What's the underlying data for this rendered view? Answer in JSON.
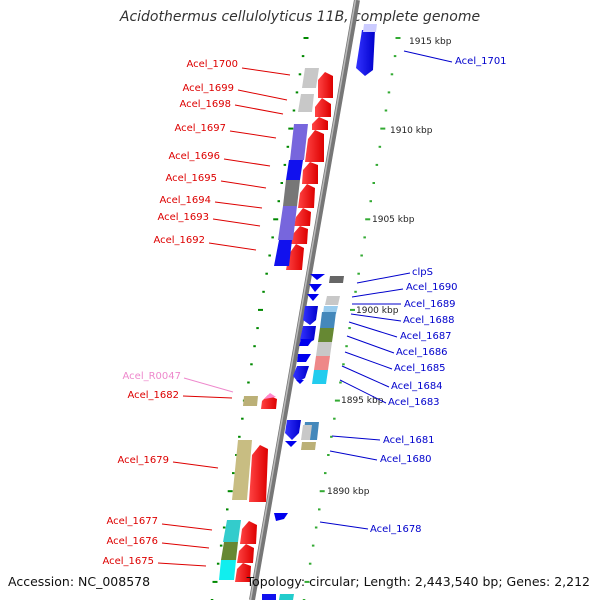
{
  "map": {
    "title": "Acidothermus cellulolyticus 11B, complete genome",
    "accession": "Accession: NC_008578",
    "summary": "Topology: circular; Length: 2,443,540 bp; Genes: 2,212",
    "colors": {
      "backbone": "#888888",
      "forward_label": "#dd0000",
      "reverse_label": "#0000cc",
      "rna_label": "#ee88cc",
      "tick_inner": "#008800",
      "tick_outer": "#33aa33",
      "ruler_text": "#222222"
    },
    "ruler": [
      {
        "label": "1915 kbp"
      },
      {
        "label": "1910 kbp"
      },
      {
        "label": "1905 kbp"
      },
      {
        "label": "1900 kbp"
      },
      {
        "label": "1895 kbp"
      },
      {
        "label": "1890 kbp"
      }
    ],
    "labels": [
      {
        "text": "Acel_1700",
        "strand": "forward"
      },
      {
        "text": "Acel_1699",
        "strand": "forward"
      },
      {
        "text": "Acel_1698",
        "strand": "forward"
      },
      {
        "text": "Acel_1697",
        "strand": "forward"
      },
      {
        "text": "Acel_1696",
        "strand": "forward"
      },
      {
        "text": "Acel_1695",
        "strand": "forward"
      },
      {
        "text": "Acel_1694",
        "strand": "forward"
      },
      {
        "text": "Acel_1693",
        "strand": "forward"
      },
      {
        "text": "Acel_1692",
        "strand": "forward"
      },
      {
        "text": "Acel_R0047",
        "strand": "rna"
      },
      {
        "text": "Acel_1682",
        "strand": "forward"
      },
      {
        "text": "Acel_1679",
        "strand": "forward"
      },
      {
        "text": "Acel_1677",
        "strand": "forward"
      },
      {
        "text": "Acel_1676",
        "strand": "forward"
      },
      {
        "text": "Acel_1675",
        "strand": "forward"
      },
      {
        "text": "Acel_1701",
        "strand": "reverse"
      },
      {
        "text": "clpS",
        "strand": "reverse"
      },
      {
        "text": "Acel_1690",
        "strand": "reverse"
      },
      {
        "text": "Acel_1689",
        "strand": "reverse"
      },
      {
        "text": "Acel_1688",
        "strand": "reverse"
      },
      {
        "text": "Acel_1687",
        "strand": "reverse"
      },
      {
        "text": "Acel_1686",
        "strand": "reverse"
      },
      {
        "text": "Acel_1685",
        "strand": "reverse"
      },
      {
        "text": "Acel_1684",
        "strand": "reverse"
      },
      {
        "text": "Acel_1683",
        "strand": "reverse"
      },
      {
        "text": "Acel_1681",
        "strand": "reverse"
      },
      {
        "text": "Acel_1680",
        "strand": "reverse"
      },
      {
        "text": "Acel_1678",
        "strand": "reverse"
      }
    ]
  }
}
